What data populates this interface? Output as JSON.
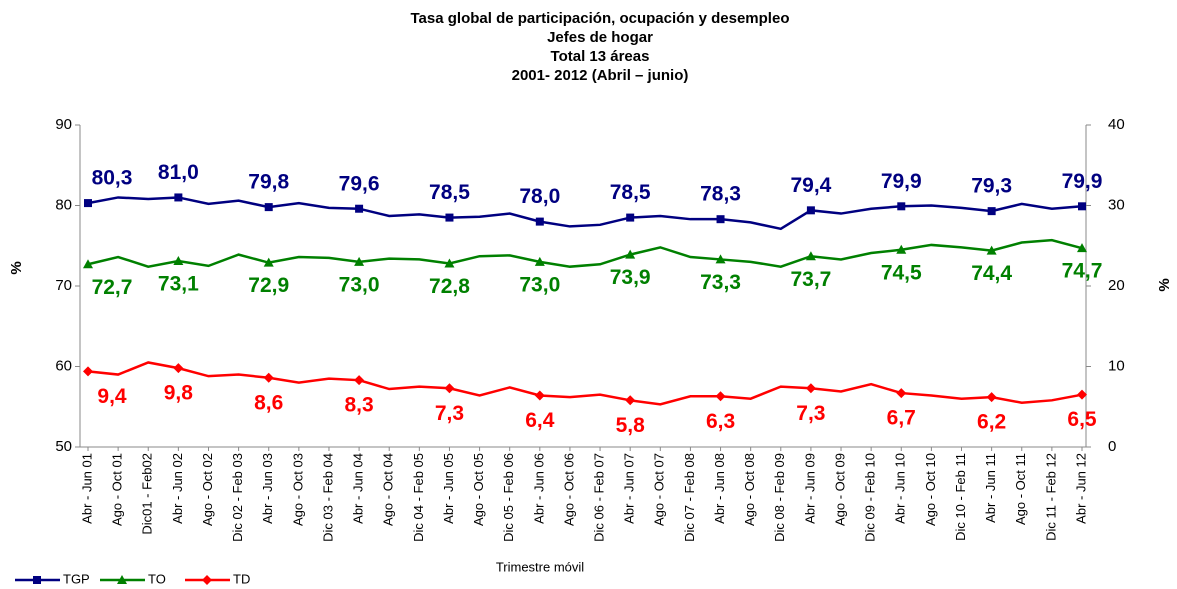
{
  "chart_data": {
    "type": "line",
    "title": [
      "Tasa global de participación, ocupación y desempleo",
      "Jefes de hogar",
      "Total 13 áreas",
      "2001- 2012 (Abril – junio)"
    ],
    "x_label": "Trimestre móvil",
    "y_label": "%",
    "y2_label": "%",
    "categories": [
      "Abr - Jun 01",
      "Ago - Oct 01",
      "Dic01 - Feb02",
      "Abr - Jun 02",
      "Ago - Oct 02",
      "Dic 02 - Feb 03",
      "Abr - Jun 03",
      "Ago - Oct 03",
      "Dic 03 - Feb 04",
      "Abr - Jun 04",
      "Ago - Oct 04",
      "Dic 04 - Feb 05",
      "Abr - Jun 05",
      "Ago - Oct 05",
      "Dic 05 - Feb 06",
      "Abr - Jun 06",
      "Ago - Oct 06",
      "Dic 06 - Feb 07",
      "Abr - Jun 07",
      "Ago - Oct 07",
      "Dic 07 - Feb 08",
      "Abr - Jun 08",
      "Ago - Oct 08",
      "Dic 08 - Feb 09",
      "Abr - Jun 09",
      "Ago - Oct 09",
      "Dic 09 - Feb 10",
      "Abr - Jun 10",
      "Ago - Oct 10",
      "Dic 10 - Feb 11",
      "Abr - Jun 11",
      "Ago - Oct 11",
      "Dic 11 - Feb 12",
      "Abr - Jun 12"
    ],
    "ylim": [
      50,
      90
    ],
    "yticks": [
      50,
      60,
      70,
      80,
      90
    ],
    "y2lim": [
      0,
      40
    ],
    "y2ticks": [
      0,
      10,
      20,
      30,
      40
    ],
    "grid": false,
    "legend": "bottom-left",
    "series": [
      {
        "name": "TGP",
        "color": "#000080",
        "marker": "square",
        "values": [
          80.3,
          81.0,
          80.8,
          81.0,
          80.2,
          80.6,
          79.8,
          80.3,
          79.7,
          79.6,
          78.7,
          78.9,
          78.5,
          78.6,
          79.0,
          78.0,
          77.4,
          77.6,
          78.5,
          78.7,
          78.3,
          78.3,
          77.9,
          77.1,
          79.4,
          79.0,
          79.6,
          79.9,
          80.0,
          79.7,
          79.3,
          80.2,
          79.6,
          79.9
        ],
        "value_labels": [
          "80,3",
          null,
          null,
          "81,0",
          null,
          null,
          "79,8",
          null,
          null,
          "79,6",
          null,
          null,
          "78,5",
          null,
          null,
          "78,0",
          null,
          null,
          "78,5",
          null,
          null,
          "78,3",
          null,
          null,
          "79,4",
          null,
          null,
          "79,9",
          null,
          null,
          "79,3",
          null,
          null,
          "79,9"
        ]
      },
      {
        "name": "TO",
        "color": "#008000",
        "marker": "triangle",
        "values": [
          72.7,
          73.6,
          72.4,
          73.1,
          72.5,
          73.9,
          72.9,
          73.6,
          73.5,
          73.0,
          73.4,
          73.3,
          72.8,
          73.7,
          73.8,
          73.0,
          72.4,
          72.7,
          73.9,
          74.8,
          73.6,
          73.3,
          73.0,
          72.4,
          73.7,
          73.3,
          74.1,
          74.5,
          75.1,
          74.8,
          74.4,
          75.4,
          75.7,
          74.7
        ],
        "value_labels": [
          "72,7",
          null,
          null,
          "73,1",
          null,
          null,
          "72,9",
          null,
          null,
          "73,0",
          null,
          null,
          "72,8",
          null,
          null,
          "73,0",
          null,
          null,
          "73,9",
          null,
          null,
          "73,3",
          null,
          null,
          "73,7",
          null,
          null,
          "74,5",
          null,
          null,
          "74,4",
          null,
          null,
          "74,7"
        ]
      },
      {
        "name": "TD",
        "color": "#ff0000",
        "marker": "diamond",
        "axis": "y2",
        "values": [
          9.4,
          9.0,
          10.5,
          9.8,
          8.8,
          9.0,
          8.6,
          8.0,
          8.5,
          8.3,
          7.2,
          7.5,
          7.3,
          6.4,
          7.4,
          6.4,
          6.2,
          6.5,
          5.8,
          5.3,
          6.3,
          6.3,
          6.0,
          7.5,
          7.3,
          6.9,
          7.8,
          6.7,
          6.4,
          6.0,
          6.2,
          5.5,
          5.8,
          6.5
        ],
        "value_labels": [
          "9,4",
          null,
          null,
          "9,8",
          null,
          null,
          "8,6",
          null,
          null,
          "8,3",
          null,
          null,
          "7,3",
          null,
          null,
          "6,4",
          null,
          null,
          "5,8",
          null,
          null,
          "6,3",
          null,
          null,
          "7,3",
          null,
          null,
          "6,7",
          null,
          null,
          "6,2",
          null,
          null,
          "6,5"
        ]
      }
    ]
  }
}
